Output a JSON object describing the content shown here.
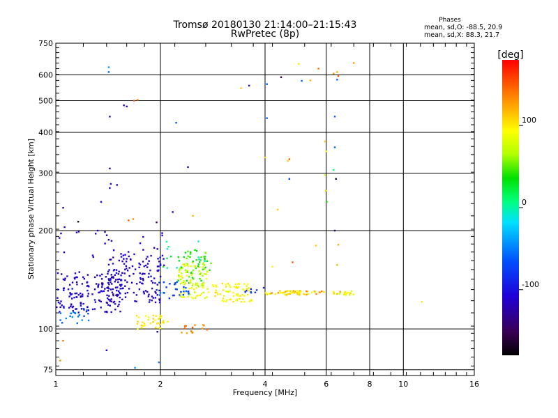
{
  "header": {
    "title": "Tromsø 20180130 21:14:00–21:15:43",
    "subtitle": "RwPretec (8p)",
    "stats_title": "Phases",
    "stats_o": "mean, sd,O: -88.5, 20.9",
    "stats_x": "mean, sd,X: 88.3, 21.7"
  },
  "chart_data": {
    "type": "scatter",
    "xlabel": "Frequency [MHz]",
    "ylabel": "Stationary phase Virtual Height [km]",
    "x_scale": "log",
    "y_scale": "log",
    "xlim": [
      1,
      16
    ],
    "ylim": [
      72,
      750
    ],
    "x_ticks": [
      {
        "v": 1,
        "label": "1"
      },
      {
        "v": 2,
        "label": "2"
      },
      {
        "v": 4,
        "label": "4"
      },
      {
        "v": 6,
        "label": "6"
      },
      {
        "v": 8,
        "label": "8"
      },
      {
        "v": 10,
        "label": "10"
      },
      {
        "v": 16,
        "label": "16"
      }
    ],
    "y_ticks": [
      {
        "v": 75,
        "label": "75"
      },
      {
        "v": 100,
        "label": "100"
      },
      {
        "v": 200,
        "label": "200"
      },
      {
        "v": 300,
        "label": "300"
      },
      {
        "v": 400,
        "label": "400"
      },
      {
        "v": 500,
        "label": "500"
      },
      {
        "v": 600,
        "label": "600"
      },
      {
        "v": 750,
        "label": "750"
      }
    ],
    "grid": true,
    "colorbar": {
      "label": "[deg]",
      "range": [
        -180,
        180
      ],
      "ticks": [
        {
          "v": 100,
          "label": "100"
        },
        {
          "v": 0,
          "label": "0"
        },
        {
          "v": -100,
          "label": "-100"
        }
      ]
    },
    "clusters": [
      {
        "name": "",
        "f": [
          1.0,
          1.55
        ],
        "h": [
          112,
          150
        ],
        "phase": [
          -125,
          -95
        ],
        "count": 170
      },
      {
        "name": "",
        "f": [
          1.4,
          2.05
        ],
        "h": [
          120,
          170
        ],
        "phase": [
          -128,
          -98
        ],
        "count": 140
      },
      {
        "name": "",
        "f": [
          1.02,
          1.25
        ],
        "h": [
          104,
          116
        ],
        "phase": [
          -70,
          -40
        ],
        "count": 20
      },
      {
        "name": "",
        "f": [
          1.95,
          2.45
        ],
        "h": [
          123,
          140
        ],
        "phase": [
          -85,
          -50
        ],
        "count": 30
      },
      {
        "name": "",
        "f": [
          2.25,
          2.75
        ],
        "h": [
          124,
          160
        ],
        "phase": [
          60,
          100
        ],
        "count": 100
      },
      {
        "name": "",
        "f": [
          2.25,
          2.8
        ],
        "h": [
          140,
          175
        ],
        "phase": [
          25,
          60
        ],
        "count": 45
      },
      {
        "name": "",
        "f": [
          2.0,
          2.8
        ],
        "h": [
          150,
          190
        ],
        "phase": [
          -10,
          30
        ],
        "count": 15
      },
      {
        "name": "",
        "f": [
          2.8,
          3.6
        ],
        "h": [
          126,
          138
        ],
        "phase": [
          80,
          110
        ],
        "count": 50
      },
      {
        "name": "",
        "f": [
          3.0,
          3.7
        ],
        "h": [
          121,
          124
        ],
        "phase": [
          85,
          105
        ],
        "count": 20
      },
      {
        "name": "",
        "f": [
          3.5,
          4.0
        ],
        "h": [
          128,
          134
        ],
        "phase": [
          -95,
          -60
        ],
        "count": 8
      },
      {
        "name": "",
        "f": [
          4.0,
          5.2
        ],
        "h": [
          127,
          131
        ],
        "phase": [
          80,
          130
        ],
        "count": 45
      },
      {
        "name": "",
        "f": [
          5.2,
          6.0
        ],
        "h": [
          127,
          131
        ],
        "phase": [
          80,
          140
        ],
        "count": 14
      },
      {
        "name": "",
        "f": [
          6.2,
          7.3
        ],
        "h": [
          127,
          131
        ],
        "phase": [
          70,
          120
        ],
        "count": 20
      },
      {
        "name": "",
        "f": [
          1.7,
          2.1
        ],
        "h": [
          100,
          110
        ],
        "phase": [
          90,
          110
        ],
        "count": 35
      },
      {
        "name": "",
        "f": [
          2.3,
          2.8
        ],
        "h": [
          97,
          103
        ],
        "phase": [
          120,
          150
        ],
        "count": 14
      },
      {
        "name": "",
        "f": [
          1.0,
          2.1
        ],
        "h": [
          165,
          200
        ],
        "phase": [
          -125,
          -100
        ],
        "count": 25
      }
    ],
    "points": [
      {
        "f": 1.03,
        "h": 80,
        "p": 130
      },
      {
        "f": 1.05,
        "h": 92,
        "p": 140
      },
      {
        "f": 1.4,
        "h": 86,
        "p": -110
      },
      {
        "f": 1.69,
        "h": 76,
        "p": -40
      },
      {
        "f": 1.98,
        "h": 79,
        "p": -50
      },
      {
        "f": 1.96,
        "h": 98,
        "p": -120
      },
      {
        "f": 1.06,
        "h": 205,
        "p": -110
      },
      {
        "f": 1.05,
        "h": 235,
        "p": -120
      },
      {
        "f": 1.16,
        "h": 213,
        "p": -170
      },
      {
        "f": 1.35,
        "h": 245,
        "p": -110
      },
      {
        "f": 1.43,
        "h": 270,
        "p": -120
      },
      {
        "f": 1.44,
        "h": 278,
        "p": -115
      },
      {
        "f": 1.5,
        "h": 276,
        "p": -120
      },
      {
        "f": 1.43,
        "h": 310,
        "p": -125
      },
      {
        "f": 1.43,
        "h": 447,
        "p": -130
      },
      {
        "f": 1.42,
        "h": 612,
        "p": -60
      },
      {
        "f": 1.42,
        "h": 633,
        "p": -40
      },
      {
        "f": 1.57,
        "h": 484,
        "p": -120
      },
      {
        "f": 1.6,
        "h": 480,
        "p": -110
      },
      {
        "f": 1.68,
        "h": 500,
        "p": 150
      },
      {
        "f": 1.72,
        "h": 503,
        "p": 130
      },
      {
        "f": 1.62,
        "h": 215,
        "p": 150
      },
      {
        "f": 1.67,
        "h": 217,
        "p": 130
      },
      {
        "f": 2.17,
        "h": 228,
        "p": -120
      },
      {
        "f": 2.22,
        "h": 428,
        "p": -60
      },
      {
        "f": 2.4,
        "h": 313,
        "p": -130
      },
      {
        "f": 2.48,
        "h": 222,
        "p": 120
      },
      {
        "f": 3.41,
        "h": 546,
        "p": 110
      },
      {
        "f": 3.6,
        "h": 556,
        "p": -130
      },
      {
        "f": 4.05,
        "h": 562,
        "p": -60
      },
      {
        "f": 4.05,
        "h": 442,
        "p": -60
      },
      {
        "f": 4.0,
        "h": 335,
        "p": 110
      },
      {
        "f": 4.45,
        "h": 590,
        "p": -150
      },
      {
        "f": 4.7,
        "h": 331,
        "p": 150
      },
      {
        "f": 4.65,
        "h": 327,
        "p": 110
      },
      {
        "f": 4.7,
        "h": 288,
        "p": -70
      },
      {
        "f": 4.35,
        "h": 232,
        "p": 110
      },
      {
        "f": 5.0,
        "h": 648,
        "p": 100
      },
      {
        "f": 5.1,
        "h": 575,
        "p": -60
      },
      {
        "f": 5.4,
        "h": 577,
        "p": 120
      },
      {
        "f": 5.7,
        "h": 627,
        "p": 140
      },
      {
        "f": 5.95,
        "h": 375,
        "p": 110
      },
      {
        "f": 6.0,
        "h": 350,
        "p": 90
      },
      {
        "f": 5.95,
        "h": 296,
        "p": 80
      },
      {
        "f": 5.98,
        "h": 265,
        "p": 110
      },
      {
        "f": 6.02,
        "h": 245,
        "p": 40
      },
      {
        "f": 6.3,
        "h": 605,
        "p": 130
      },
      {
        "f": 6.45,
        "h": 612,
        "p": 120
      },
      {
        "f": 6.5,
        "h": 595,
        "p": 150
      },
      {
        "f": 6.35,
        "h": 447,
        "p": -60
      },
      {
        "f": 6.35,
        "h": 360,
        "p": -60
      },
      {
        "f": 6.45,
        "h": 580,
        "p": -60
      },
      {
        "f": 6.4,
        "h": 288,
        "p": -170
      },
      {
        "f": 6.3,
        "h": 307,
        "p": 10
      },
      {
        "f": 6.35,
        "h": 200,
        "p": -140
      },
      {
        "f": 6.5,
        "h": 181,
        "p": 120
      },
      {
        "f": 6.45,
        "h": 157,
        "p": 120
      },
      {
        "f": 7.2,
        "h": 652,
        "p": 130
      },
      {
        "f": 5.6,
        "h": 180,
        "p": 110
      },
      {
        "f": 4.8,
        "h": 160,
        "p": 150
      },
      {
        "f": 4.2,
        "h": 155,
        "p": 100
      },
      {
        "f": 11.3,
        "h": 121,
        "p": 100
      },
      {
        "f": 1.95,
        "h": 212,
        "p": -150
      },
      {
        "f": 1.32,
        "h": 200,
        "p": -120
      }
    ]
  }
}
